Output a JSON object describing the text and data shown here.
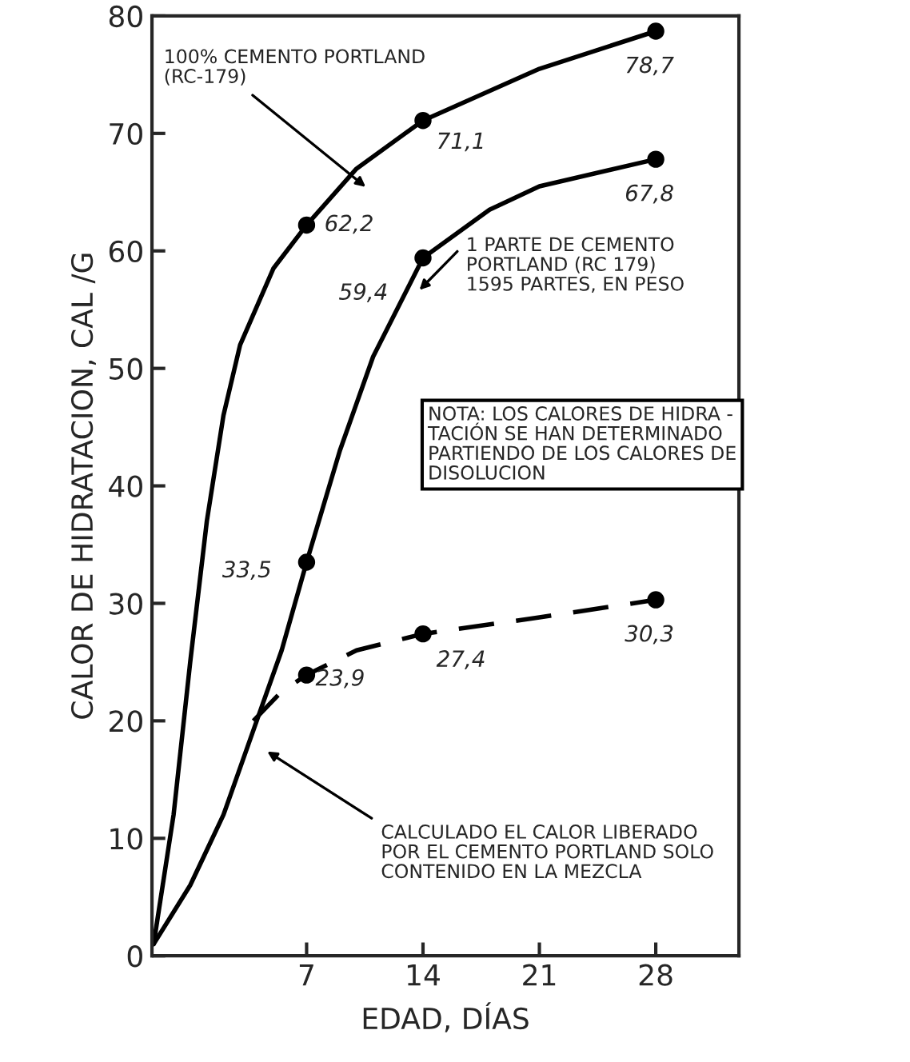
{
  "chart_data": {
    "type": "line",
    "xlabel": "EDAD, DÍAS",
    "ylabel": "CALOR DE HIDRATACION, CAL /G",
    "xlim": [
      -2.3,
      33
    ],
    "xticks": [
      7,
      14,
      21,
      28
    ],
    "ylim": [
      0,
      80
    ],
    "yticks": [
      0,
      10,
      20,
      30,
      40,
      50,
      60,
      70,
      80
    ],
    "grid": false,
    "legend": false,
    "series": [
      {
        "color": "#000000",
        "line_style": "solid",
        "x": [
          -2.2,
          -1,
          0,
          1,
          2,
          3,
          5,
          7,
          10,
          14,
          21,
          28
        ],
        "values": [
          1,
          12,
          25,
          37,
          46,
          52,
          58.5,
          62.2,
          67,
          71.1,
          75.5,
          78.7
        ]
      },
      {
        "color": "#000000",
        "line_style": "solid",
        "x": [
          -2.2,
          0,
          2,
          4,
          5.5,
          7,
          9,
          11,
          14,
          18,
          21,
          28
        ],
        "values": [
          1,
          6,
          12,
          20,
          26,
          33.5,
          43,
          51,
          59.4,
          63.5,
          65.5,
          67.8
        ]
      },
      {
        "color": "#000000",
        "line_style": "dashed",
        "x": [
          3.8,
          5.5,
          7,
          10,
          14,
          21,
          28
        ],
        "values": [
          20,
          22.5,
          23.9,
          26,
          27.4,
          28.8,
          30.3
        ]
      },
      {
        "type": "scatter",
        "color": "#000000",
        "marker": "circle",
        "x": [
          7,
          14,
          28
        ],
        "values": [
          62.2,
          71.1,
          78.7
        ],
        "value_labels": [
          "62,2",
          "71,1",
          "78,7"
        ]
      },
      {
        "type": "scatter",
        "color": "#000000",
        "marker": "circle",
        "x": [
          7,
          14,
          28
        ],
        "values": [
          33.5,
          59.4,
          67.8
        ],
        "value_labels": [
          "33,5",
          "59,4",
          "67,8"
        ]
      },
      {
        "type": "scatter",
        "color": "#000000",
        "marker": "circle",
        "x": [
          7,
          14,
          28
        ],
        "values": [
          23.9,
          27.4,
          30.3
        ],
        "value_labels": [
          "23,9",
          "27,4",
          "30,3"
        ]
      }
    ],
    "annotations": [
      "100% CEMENTO PORTLAND\n(RC-179)",
      {
        "text": "1 PARTE DE CEMENTO\nPORTLAND (RC 179)\n1595 PARTES, EN PESO",
        "x": 13.6,
        "y": 56.4
      },
      "CALCULADO EL CALOR LIBERADO\nPOR EL CEMENTO PORTLAND SOLO\nCONTENIDO EN LA MEZCLA",
      "NOTA: LOS CALORES DE HIDRA -\nTACIÓN SE HAN DETERMINADO\nPARTIENDO DE LOS CALORES DE\nDISOLUCION"
    ]
  }
}
